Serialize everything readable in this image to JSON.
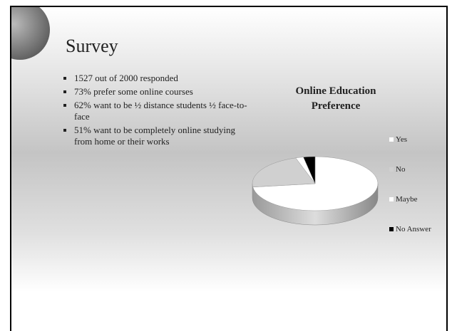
{
  "slide": {
    "title": "Survey",
    "bullets": [
      "1527 out of 2000 responded",
      "73% prefer some online courses",
      "62% want to be ½ distance students ½ face-to-face",
      "51% want to be completely online studying from home or their works"
    ]
  },
  "chart_data": {
    "type": "pie",
    "title": "Online Education Preference",
    "categories": [
      "Yes",
      "No",
      "Maybe",
      "No Answer"
    ],
    "values": [
      73,
      22,
      2,
      3
    ],
    "colors": [
      "#ffffff",
      "#d0d0d0",
      "#ffffff",
      "#000000"
    ],
    "legend": "right"
  }
}
